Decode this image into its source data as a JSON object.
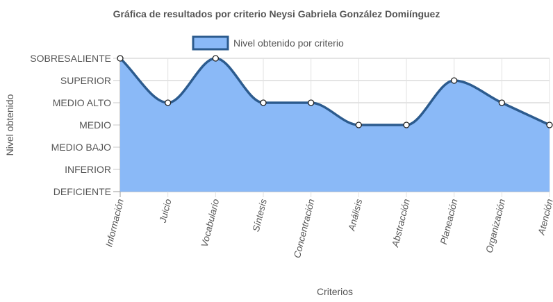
{
  "chart_data": {
    "type": "area",
    "title": "Gráfica de resultados por criterio Neysi Gabriela González Domiínguez",
    "xlabel": "Criterios",
    "ylabel": "Nivel obtenido",
    "y_levels": [
      "DEFICIENTE",
      "INFERIOR",
      "MEDIO BAJO",
      "MEDIO",
      "MEDIO ALTO",
      "SUPERIOR",
      "SOBRESALIENTE"
    ],
    "ylim": [
      0,
      6
    ],
    "categories": [
      "Información",
      "Juicio",
      "Vocabulario",
      "Síntesis",
      "Concentración",
      "Análisis",
      "Abstracción",
      "Planeación",
      "Organización",
      "Atención"
    ],
    "series": [
      {
        "name": "Nivel obtenido por criterio",
        "values": [
          6,
          4,
          6,
          4,
          4,
          3,
          3,
          5,
          4,
          3
        ],
        "fill": "#8ab9f7",
        "stroke": "#2c5b8e"
      }
    ],
    "legend": "top",
    "grid": true
  }
}
